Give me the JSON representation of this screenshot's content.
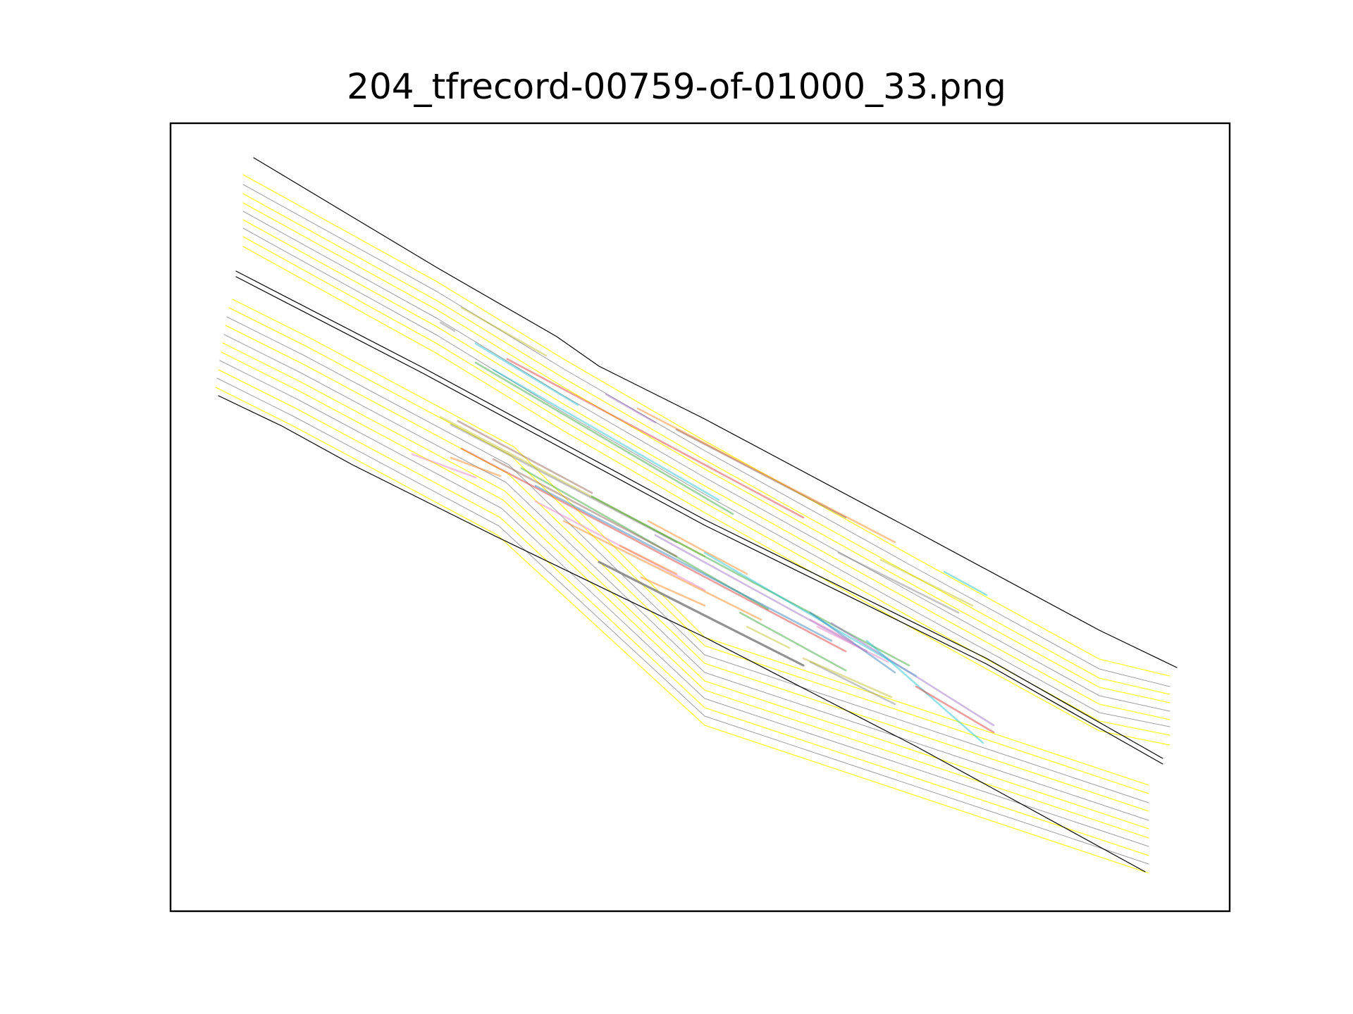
{
  "figure": {
    "title": "204_tfrecord-00759-of-01000_33.png"
  },
  "colors": {
    "background": "#ffffff",
    "frame": "#000000",
    "road_boundary": "#000000",
    "lane_center": "#ffff00",
    "lane_divider": "#9e9e9e",
    "trajectory_palette": [
      "#1f77b4",
      "#ff7f0e",
      "#2ca02c",
      "#d62728",
      "#9467bd",
      "#8c564b",
      "#e377c2",
      "#7f7f7f",
      "#bcbd22",
      "#17becf"
    ]
  },
  "map_lines": {
    "road_boundaries": 5,
    "lane_centerlines": 16,
    "lane_dividers": 8
  },
  "agent_tracks": {
    "count": 40
  }
}
